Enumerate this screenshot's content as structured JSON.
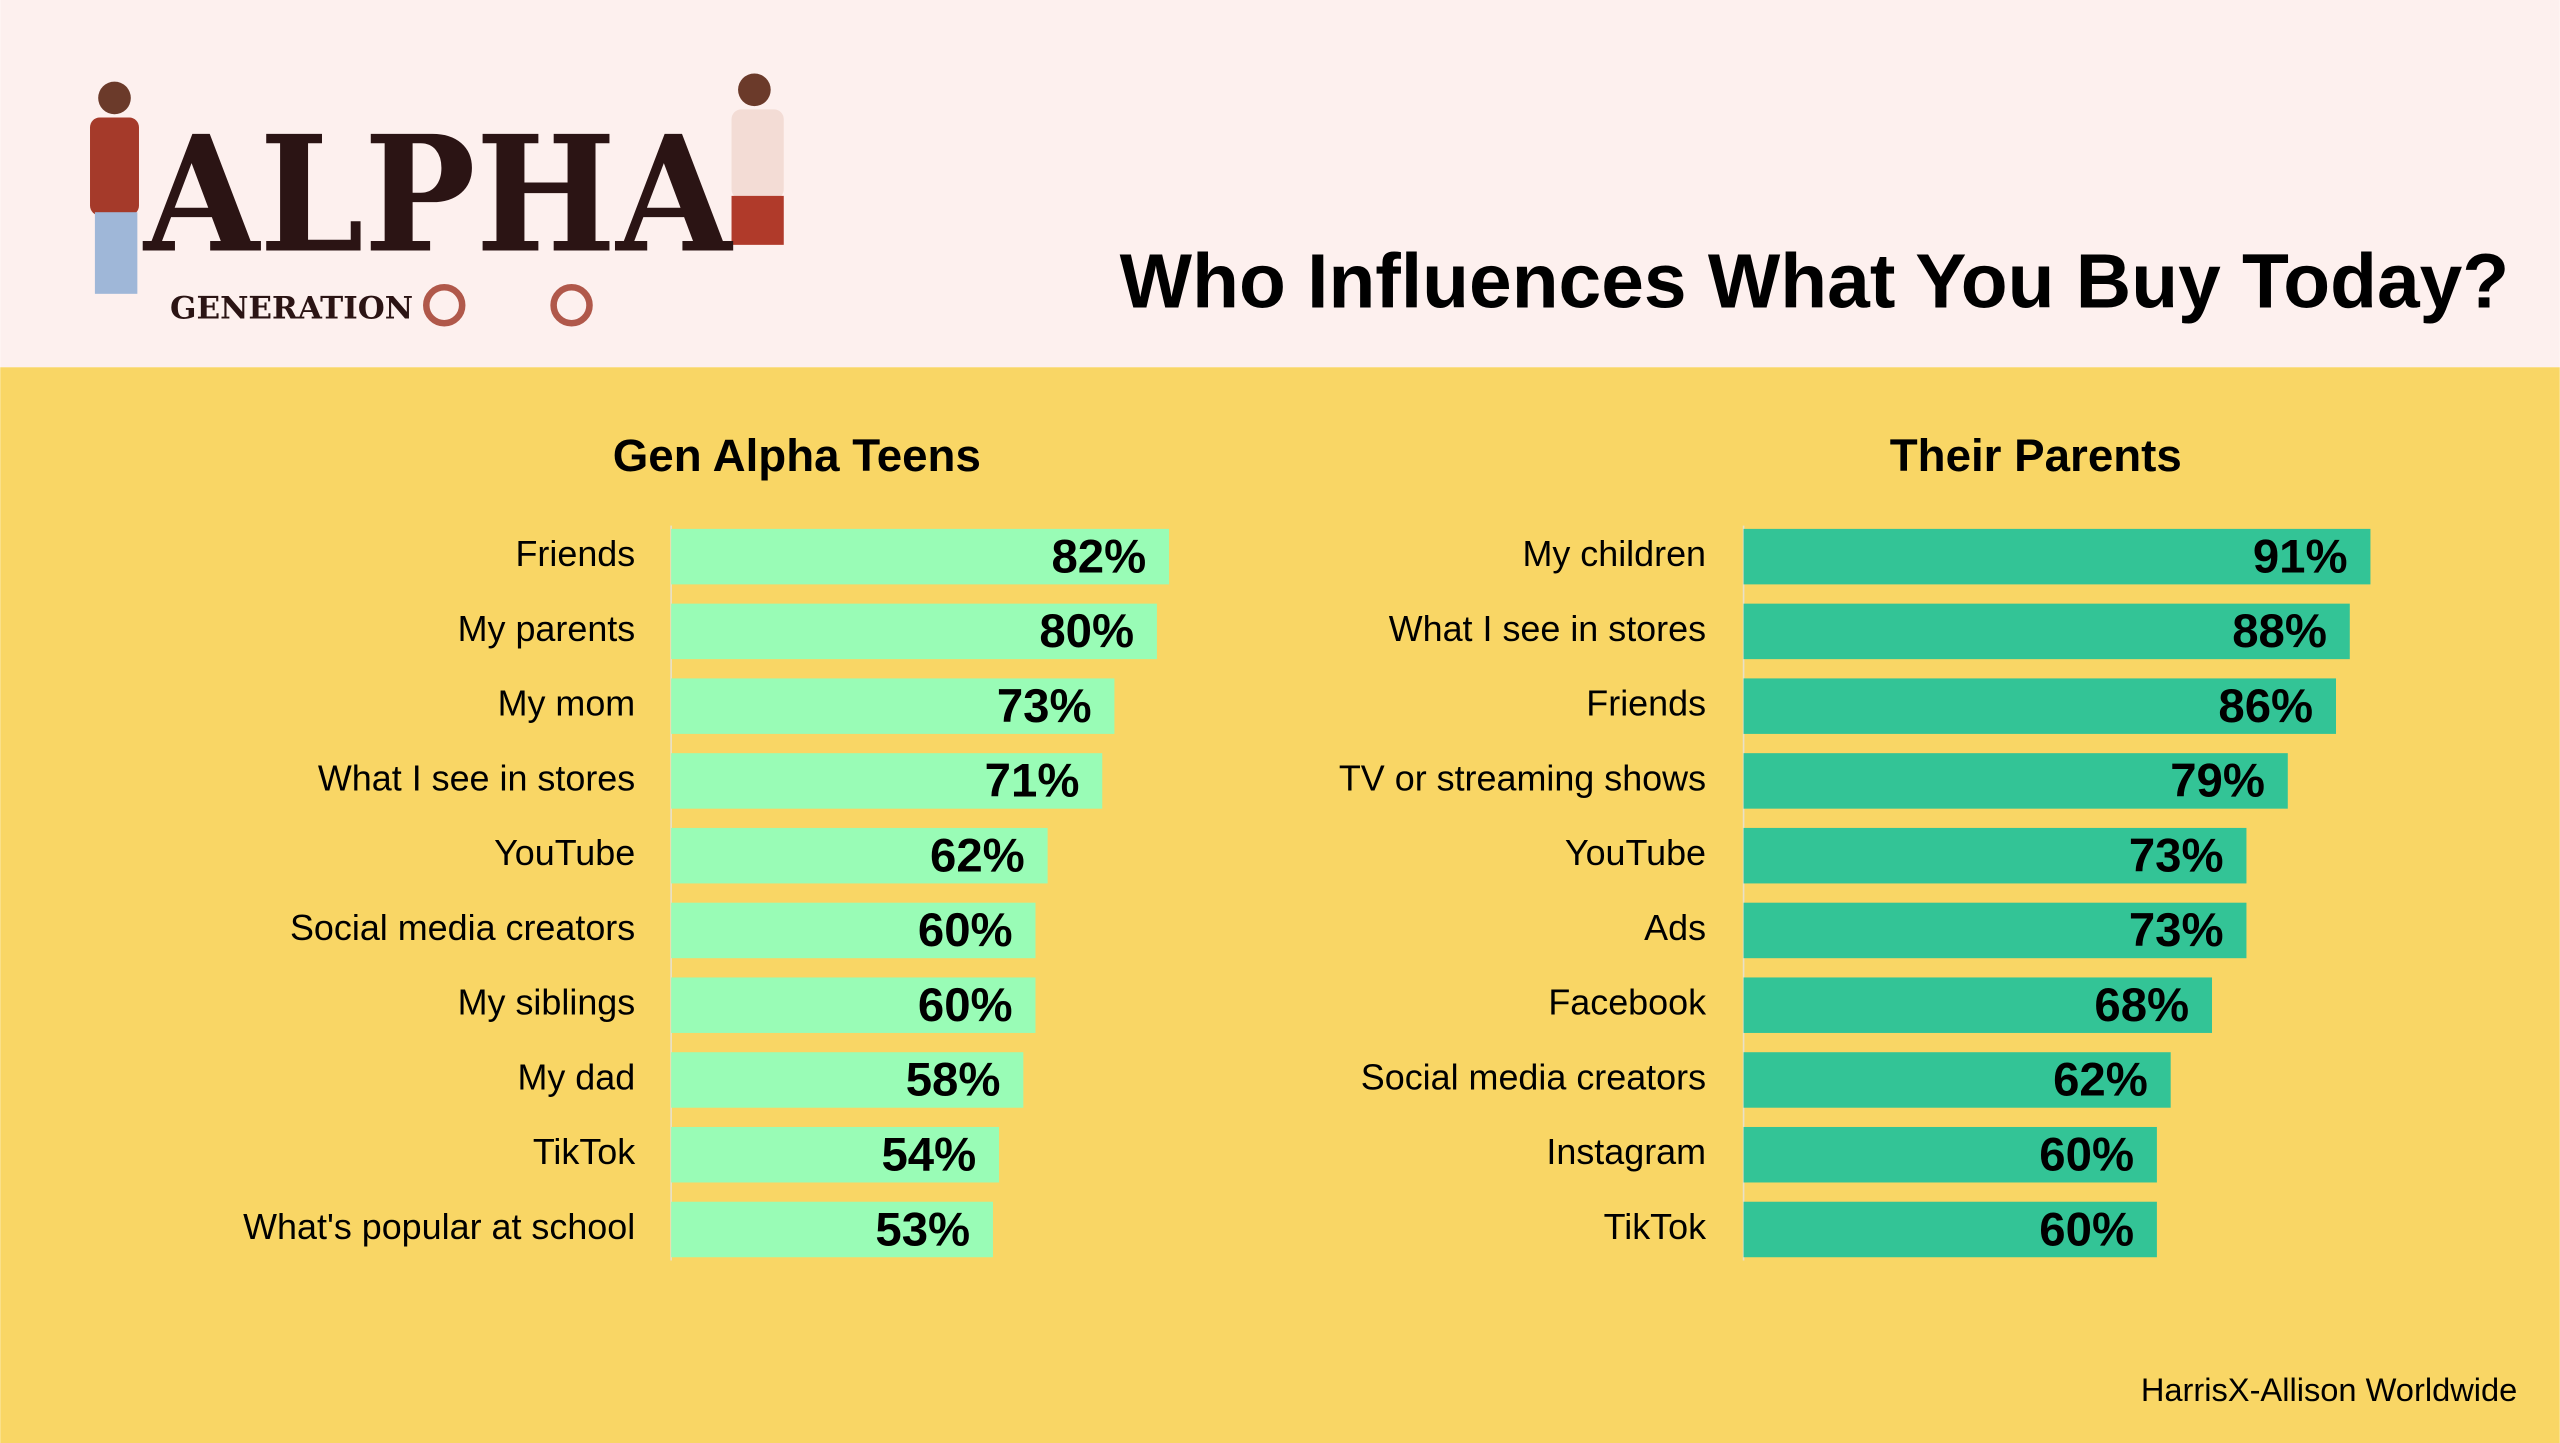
{
  "title": "Who Influences What You Buy Today?",
  "logo": {
    "word": "ALPHA",
    "tagline": "GENERATION"
  },
  "source": "HarrisX-Allison Worldwide",
  "chart_data": [
    {
      "type": "bar",
      "orientation": "horizontal",
      "title": "Gen Alpha Teens",
      "color": "#99fcb6",
      "categories": [
        "Friends",
        "My parents",
        "My mom",
        "What I see in stores",
        "YouTube",
        "Social media creators",
        "My siblings",
        "My dad",
        "TikTok",
        "What's popular at school"
      ],
      "values": [
        82,
        80,
        73,
        71,
        62,
        60,
        60,
        58,
        54,
        53
      ],
      "value_labels": [
        "82%",
        "80%",
        "73%",
        "71%",
        "62%",
        "60%",
        "60%",
        "58%",
        "54%",
        "53%"
      ]
    },
    {
      "type": "bar",
      "orientation": "horizontal",
      "title": "Their Parents",
      "color": "#33c496",
      "categories": [
        "My children",
        "What I see in stores",
        "Friends",
        "TV or streaming shows",
        "YouTube",
        "Ads",
        "Facebook",
        "Social media creators",
        "Instagram",
        "TikTok"
      ],
      "values": [
        91,
        88,
        86,
        79,
        73,
        73,
        68,
        62,
        60,
        60
      ],
      "value_labels": [
        "91%",
        "88%",
        "86%",
        "79%",
        "73%",
        "73%",
        "68%",
        "62%",
        "60%",
        "60%"
      ]
    }
  ]
}
